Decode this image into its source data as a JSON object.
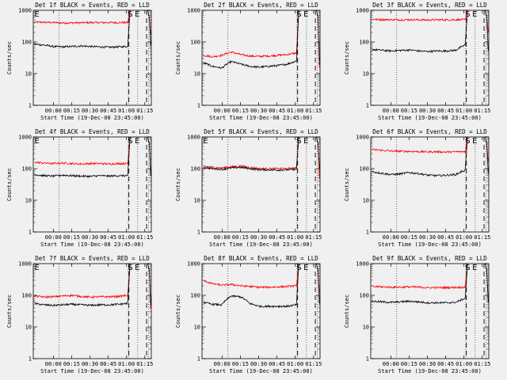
{
  "chart_data": [
    {
      "type": "line",
      "title": "Det 1f BLACK = Events, RED = LLD",
      "ylabel": "Counts/sec",
      "xlabel": "Start Time (19-Dec-08 23:45:00)",
      "yscale": "log",
      "ylim": [
        1,
        1000
      ],
      "yticks": [
        "1",
        "10",
        "100",
        "1000"
      ],
      "xticks": [
        "00:00",
        "00:15",
        "00:30",
        "00:45",
        "01:00",
        "01:15"
      ],
      "markers": [
        "E",
        "S",
        "E"
      ],
      "series": [
        {
          "color": "#ff0000",
          "values": [
            420,
            420,
            410,
            400,
            400,
            405,
            410,
            410,
            410,
            410,
            410,
            1000
          ]
        },
        {
          "color": "#000000",
          "values": [
            85,
            80,
            72,
            70,
            72,
            75,
            72,
            70,
            68,
            70,
            72,
            1000
          ]
        }
      ]
    },
    {
      "type": "line",
      "title": "Det 2f BLACK = Events, RED = LLD",
      "ylabel": "Counts/sec",
      "xlabel": "Start Time (19-Dec-08 23:45:00)",
      "yscale": "log",
      "ylim": [
        1,
        1000
      ],
      "yticks": [
        "1",
        "10",
        "100",
        "1000"
      ],
      "xticks": [
        "00:00",
        "00:15",
        "00:30",
        "00:45",
        "01:00",
        "01:15"
      ],
      "markers": [
        "S",
        "E"
      ],
      "series": [
        {
          "color": "#ff0000",
          "values": [
            38,
            34,
            38,
            48,
            40,
            36,
            35,
            36,
            38,
            40,
            45,
            1000
          ]
        },
        {
          "color": "#000000",
          "values": [
            22,
            17,
            15,
            24,
            20,
            17,
            16,
            17,
            18,
            20,
            25,
            1000
          ]
        }
      ]
    },
    {
      "type": "line",
      "title": "Det 3f BLACK = Events, RED = LLD",
      "ylabel": "Counts/sec",
      "xlabel": "Start Time (19-Dec-08 23:45:00)",
      "yscale": "log",
      "ylim": [
        1,
        1000
      ],
      "yticks": [
        "1",
        "10",
        "100",
        "1000"
      ],
      "xticks": [
        "00:00",
        "00:15",
        "00:30",
        "00:45",
        "01:00",
        "01:15"
      ],
      "markers": [
        "S",
        "E"
      ],
      "series": [
        {
          "color": "#ff0000",
          "values": [
            520,
            510,
            505,
            500,
            505,
            500,
            495,
            500,
            500,
            505,
            505,
            1000
          ]
        },
        {
          "color": "#000000",
          "values": [
            58,
            55,
            52,
            54,
            56,
            52,
            50,
            52,
            52,
            55,
            80,
            1000
          ]
        }
      ]
    },
    {
      "type": "line",
      "title": "Det 4f BLACK = Events, RED = LLD",
      "ylabel": "Counts/sec",
      "xlabel": "Start Time (19-Dec-08 23:45:00)",
      "yscale": "log",
      "ylim": [
        1,
        1000
      ],
      "yticks": [
        "1",
        "10",
        "100",
        "1000"
      ],
      "xticks": [
        "00:00",
        "00:15",
        "00:30",
        "00:45",
        "01:00",
        "01:15"
      ],
      "markers": [
        "E",
        "S",
        "E"
      ],
      "series": [
        {
          "color": "#ff0000",
          "values": [
            160,
            150,
            145,
            150,
            145,
            140,
            145,
            145,
            140,
            145,
            145,
            1000
          ]
        },
        {
          "color": "#000000",
          "values": [
            65,
            60,
            58,
            62,
            60,
            58,
            57,
            60,
            58,
            60,
            60,
            1000
          ]
        }
      ]
    },
    {
      "type": "line",
      "title": "Det 5f BLACK = Events, RED = LLD",
      "ylabel": "Counts/sec",
      "xlabel": "Start Time (19-Dec-08 23:45:00)",
      "yscale": "log",
      "ylim": [
        1,
        1000
      ],
      "yticks": [
        "1",
        "10",
        "100",
        "1000"
      ],
      "xticks": [
        "00:00",
        "00:15",
        "00:30",
        "00:45",
        "01:00",
        "01:15"
      ],
      "markers": [
        "E",
        "S",
        "E"
      ],
      "series": [
        {
          "color": "#ff0000",
          "values": [
            120,
            110,
            105,
            115,
            120,
            110,
            100,
            100,
            100,
            100,
            105,
            1000
          ]
        },
        {
          "color": "#000000",
          "values": [
            110,
            100,
            95,
            105,
            110,
            100,
            92,
            92,
            90,
            92,
            95,
            1000
          ]
        }
      ]
    },
    {
      "type": "line",
      "title": "Det 6f BLACK = Events, RED = LLD",
      "ylabel": "Counts/sec",
      "xlabel": "Start Time (19-Dec-08 23:45:00)",
      "yscale": "log",
      "ylim": [
        1,
        1000
      ],
      "yticks": [
        "1",
        "10",
        "100",
        "1000"
      ],
      "xticks": [
        "00:00",
        "00:15",
        "00:30",
        "00:45",
        "01:00",
        "01:15"
      ],
      "markers": [
        "S",
        "E"
      ],
      "series": [
        {
          "color": "#ff0000",
          "values": [
            400,
            380,
            360,
            355,
            350,
            345,
            340,
            340,
            335,
            340,
            345,
            1000
          ]
        },
        {
          "color": "#000000",
          "values": [
            80,
            72,
            65,
            68,
            75,
            70,
            62,
            60,
            62,
            65,
            90,
            1000
          ]
        }
      ]
    },
    {
      "type": "line",
      "title": "Det 7f BLACK = Events, RED = LLD",
      "ylabel": "Counts/sec",
      "xlabel": "Start Time (19-Dec-08 23:45:00)",
      "yscale": "log",
      "ylim": [
        1,
        1000
      ],
      "yticks": [
        "1",
        "10",
        "100",
        "1000"
      ],
      "xticks": [
        "00:00",
        "00:15",
        "00:30",
        "00:45",
        "01:00",
        "01:15"
      ],
      "markers": [
        "E",
        "S",
        "E"
      ],
      "series": [
        {
          "color": "#ff0000",
          "values": [
            95,
            88,
            90,
            95,
            100,
            92,
            88,
            90,
            90,
            92,
            100,
            1000
          ]
        },
        {
          "color": "#000000",
          "values": [
            55,
            50,
            48,
            50,
            52,
            50,
            48,
            50,
            50,
            52,
            55,
            1000
          ]
        }
      ]
    },
    {
      "type": "line",
      "title": "Det 8f BLACK = Events, RED = LLD",
      "ylabel": "Counts/sec",
      "xlabel": "Start Time (19-Dec-08 23:45:00)",
      "yscale": "log",
      "ylim": [
        1,
        1000
      ],
      "yticks": [
        "1",
        "10",
        "100",
        "1000"
      ],
      "xticks": [
        "00:00",
        "00:15",
        "00:30",
        "00:45",
        "01:00",
        "01:15"
      ],
      "markers": [
        "S",
        "E"
      ],
      "series": [
        {
          "color": "#ff0000",
          "values": [
            290,
            230,
            210,
            220,
            200,
            190,
            180,
            180,
            185,
            190,
            200,
            1000
          ]
        },
        {
          "color": "#000000",
          "values": [
            60,
            52,
            50,
            95,
            90,
            55,
            45,
            45,
            45,
            45,
            50,
            1000
          ]
        }
      ]
    },
    {
      "type": "line",
      "title": "Det 9f BLACK = Events, RED = LLD",
      "ylabel": "Counts/sec",
      "xlabel": "Start Time (19-Dec-08 23:45:00)",
      "yscale": "log",
      "ylim": [
        1,
        1000
      ],
      "yticks": [
        "1",
        "10",
        "100",
        "1000"
      ],
      "xticks": [
        "00:00",
        "00:15",
        "00:30",
        "00:45",
        "01:00",
        "01:15"
      ],
      "markers": [
        "S",
        "E"
      ],
      "series": [
        {
          "color": "#ff0000",
          "values": [
            190,
            185,
            180,
            180,
            185,
            180,
            175,
            175,
            175,
            178,
            180,
            1000
          ]
        },
        {
          "color": "#000000",
          "values": [
            65,
            62,
            60,
            62,
            65,
            62,
            58,
            58,
            58,
            60,
            80,
            1000
          ]
        }
      ]
    }
  ]
}
